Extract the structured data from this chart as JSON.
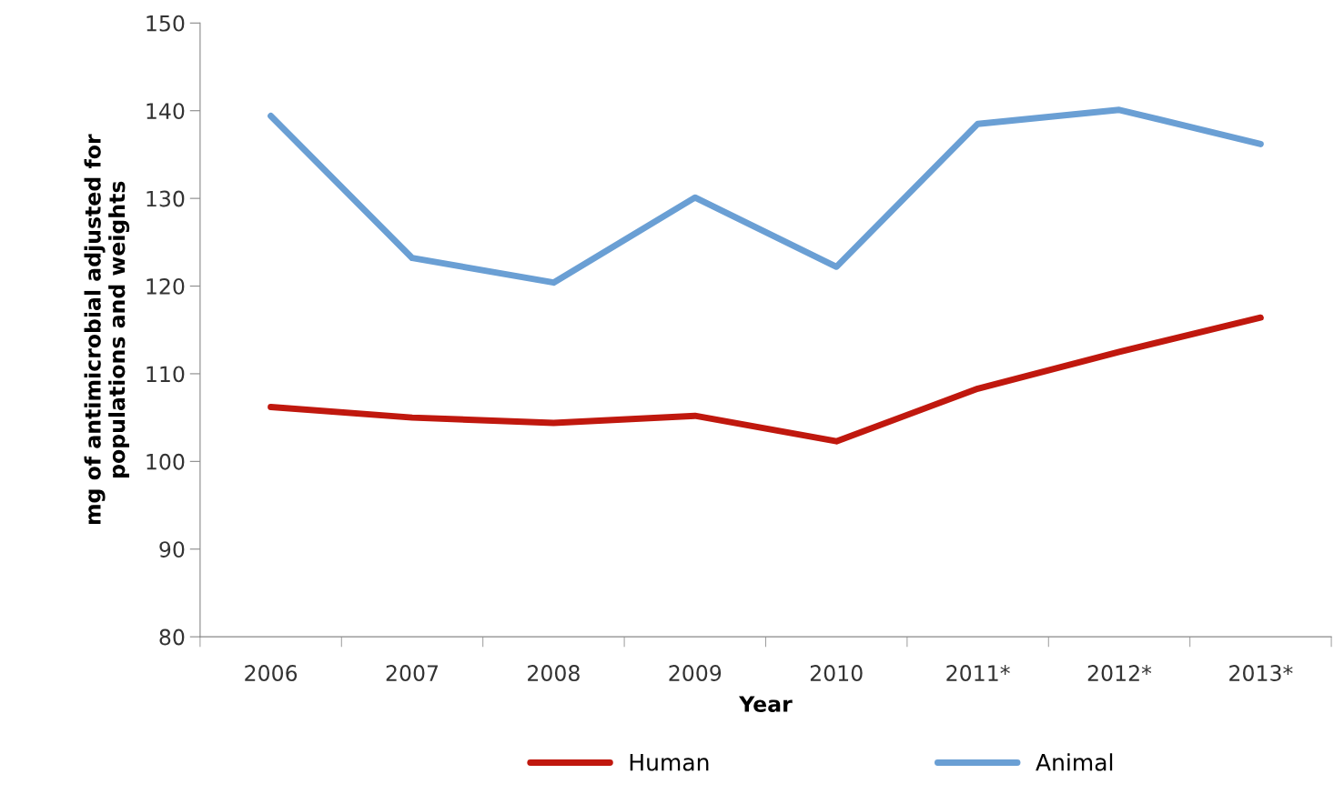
{
  "chart_data": {
    "type": "line",
    "xlabel": "Year",
    "ylabel": "mg of antimicrobial adjusted for\npopulations and weights",
    "categories": [
      "2006",
      "2007",
      "2008",
      "2009",
      "2010",
      "2011*",
      "2012*",
      "2013*"
    ],
    "series": [
      {
        "name": "Human",
        "color": "#c0180e",
        "values": [
          106.2,
          105.0,
          104.4,
          105.2,
          102.3,
          108.3,
          112.5,
          116.4
        ]
      },
      {
        "name": "Animal",
        "color": "#6a9fd4",
        "values": [
          139.4,
          123.2,
          120.4,
          130.1,
          122.2,
          138.5,
          140.1,
          136.2
        ]
      }
    ],
    "ylim": [
      80,
      150
    ],
    "yticks": [
      80,
      90,
      100,
      110,
      120,
      130,
      140,
      150
    ],
    "grid": false,
    "legend": "bottom",
    "marker": "none",
    "line_style": "solid"
  }
}
